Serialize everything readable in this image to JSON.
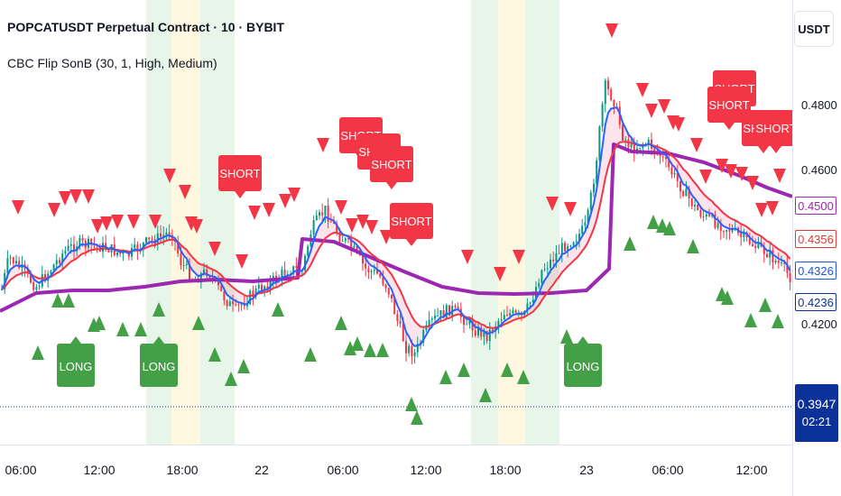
{
  "header": {
    "title": "POPCATUSDT Perpetual Contract · 10 · BYBIT",
    "indicator": "CBC Flip SonB (30, 1, High, Medium)"
  },
  "price_axis": {
    "currency": "USDT",
    "labels": [
      "0.4800",
      "0.4600",
      "0.4200"
    ],
    "tags": [
      {
        "value": "0.4500",
        "color": "#9c27b0"
      },
      {
        "value": "0.4356",
        "color": "#e53935"
      },
      {
        "value": "0.4326",
        "color": "#1e53e5"
      },
      {
        "value": "0.4236",
        "color": "#0c3299"
      }
    ],
    "last_price": "0.3947",
    "countdown": "02:21"
  },
  "time_axis": {
    "labels": [
      "06:00",
      "12:00",
      "18:00",
      "22",
      "06:00",
      "12:00",
      "18:00",
      "23",
      "06:00",
      "12:00"
    ]
  },
  "signals": {
    "short_label": "SHORT",
    "long_label": "LONG"
  },
  "colors": {
    "ema_fast": "#2962ff",
    "ema_slow": "#f23645",
    "baseline": "#9c27b0",
    "bull": "#089981",
    "bear": "#f23645",
    "signal_short": "#f23645",
    "signal_long": "#43a047",
    "session_green": "#e8f5e9",
    "session_yellow": "#fff8e1"
  }
}
